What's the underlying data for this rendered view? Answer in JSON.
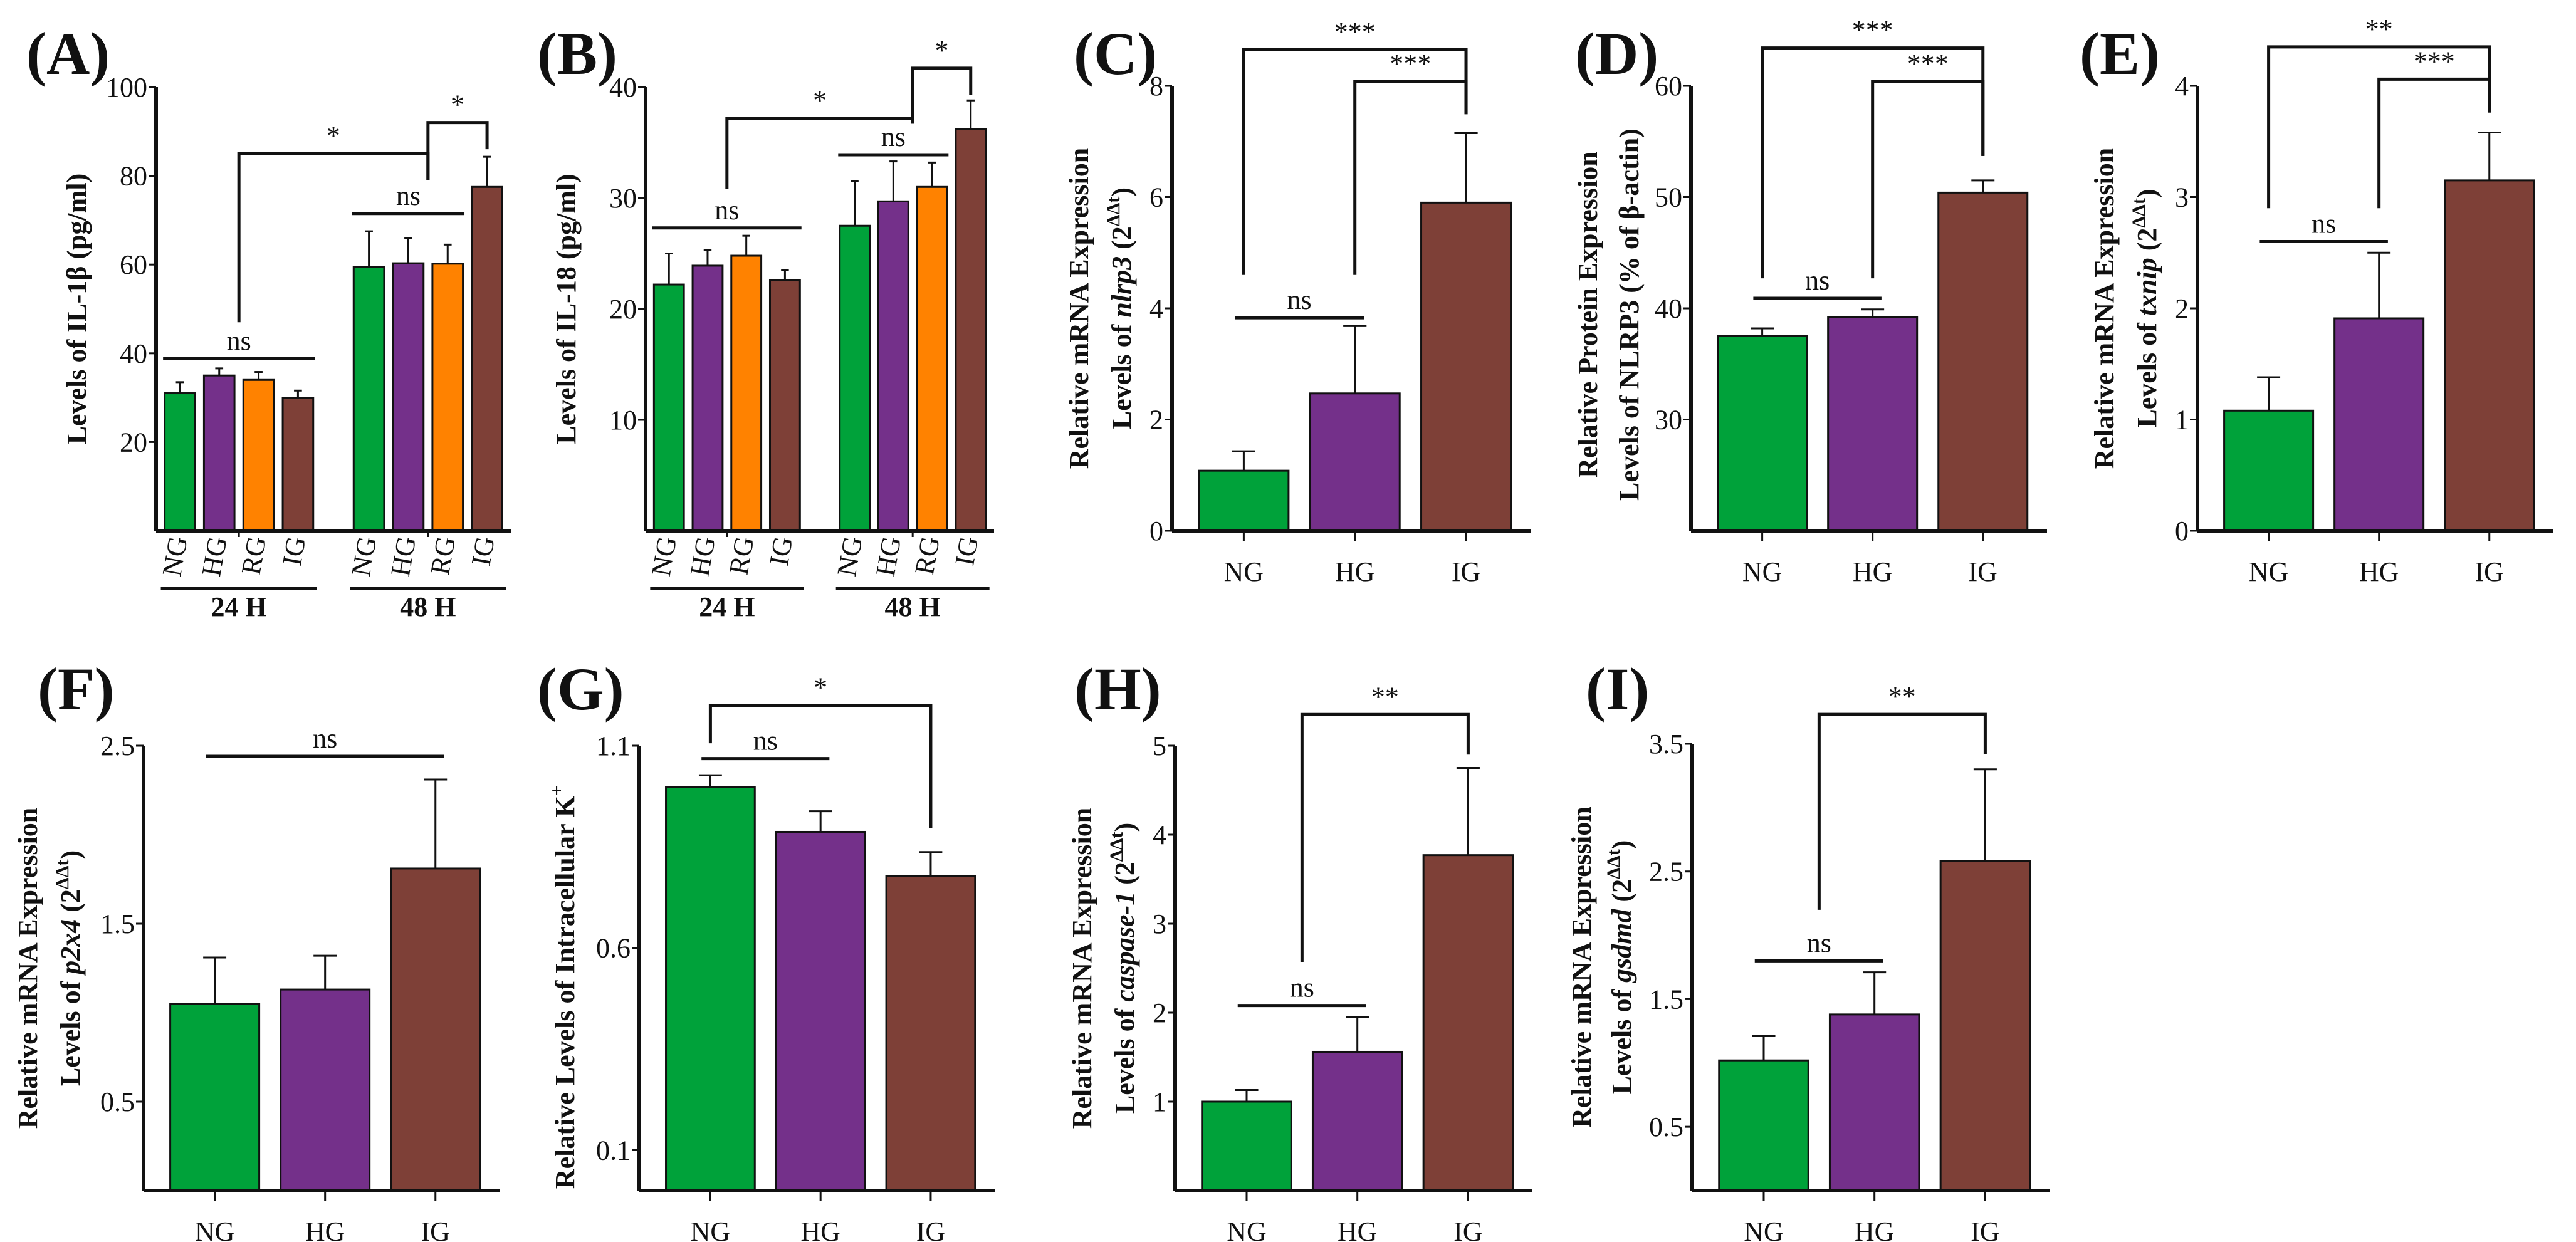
{
  "colors": {
    "NG": "#00a23a",
    "HG": "#74308a",
    "RG": "#ff8200",
    "IG": "#7e4037"
  },
  "chart_data": [
    {
      "panel": "(A)",
      "type": "bar",
      "grouped": true,
      "ylabel": [
        [
          {
            "t": "Levels of IL-1β (pg/ml)"
          }
        ]
      ],
      "ylim": [
        0,
        100
      ],
      "yticks": [
        "20",
        "40",
        "60",
        "80",
        "100"
      ],
      "ytick_values": [
        20,
        40,
        60,
        80,
        100
      ],
      "groups": [
        "24 H",
        "48 H"
      ],
      "categories": [
        "NG",
        "HG",
        "RG",
        "IG",
        "NG",
        "HG",
        "RG",
        "IG"
      ],
      "values": [
        31,
        35,
        34,
        30,
        59.5,
        60.3,
        60.2,
        77.5
      ],
      "error_top": [
        33.5,
        36.6,
        35.8,
        31.6,
        67.5,
        66,
        64.5,
        84.3
      ],
      "brackets": [
        {
          "from": 0,
          "to": 3,
          "y": 38.8,
          "label": "ns"
        },
        {
          "from": 4,
          "to": 6,
          "y": 71.5,
          "label": "ns"
        },
        {
          "from": 1.5,
          "to": 5.5,
          "y": 85,
          "leg1": 47,
          "leg2": 79,
          "label": "*"
        },
        {
          "from": 5.5,
          "to": 7,
          "y": 92,
          "leg1": 79,
          "leg2": 86,
          "label": "*"
        }
      ]
    },
    {
      "panel": "(B)",
      "type": "bar",
      "grouped": true,
      "ylabel": [
        [
          {
            "t": "Levels of IL-18 (pg/ml)"
          }
        ]
      ],
      "ylim": [
        0,
        40
      ],
      "yticks": [
        "10",
        "20",
        "30",
        "40"
      ],
      "ytick_values": [
        10,
        20,
        30,
        40
      ],
      "groups": [
        "24 H",
        "48 H"
      ],
      "categories": [
        "NG",
        "HG",
        "RG",
        "IG",
        "NG",
        "HG",
        "RG",
        "IG"
      ],
      "values": [
        22.2,
        23.9,
        24.8,
        22.6,
        27.5,
        29.7,
        31,
        36.2
      ],
      "error_top": [
        25,
        25.3,
        26.6,
        23.5,
        31.5,
        33.3,
        33.2,
        38.8
      ],
      "brackets": [
        {
          "from": 0,
          "to": 3,
          "y": 27.3,
          "label": "ns"
        },
        {
          "from": 4,
          "to": 6,
          "y": 33.9,
          "label": "ns"
        },
        {
          "from": 1.5,
          "to": 5.5,
          "y": 37.2,
          "leg1": 30.8,
          "leg2": 36.7,
          "label": "*"
        },
        {
          "from": 5.5,
          "to": 7,
          "y": 41.7,
          "leg1": 36.7,
          "leg2": 39.3,
          "label": "*"
        }
      ]
    },
    {
      "panel": "(C)",
      "type": "bar",
      "ylabel": [
        [
          {
            "t": "Relative mRNA Expression"
          }
        ],
        [
          {
            "t": "Levels of "
          },
          {
            "t": "nlrp3",
            "i": true
          },
          {
            "t": " (2"
          },
          {
            "t": "ΔΔt",
            "sup": true
          },
          {
            "t": ")"
          }
        ]
      ],
      "ylim": [
        0,
        8
      ],
      "yticks": [
        "0",
        "2",
        "4",
        "6",
        "8"
      ],
      "ytick_values": [
        0,
        2,
        4,
        6,
        8
      ],
      "categories": [
        "NG",
        "HG",
        "IG"
      ],
      "values": [
        1.08,
        2.47,
        5.9
      ],
      "error_top": [
        1.43,
        3.68,
        7.15
      ],
      "brackets": [
        {
          "from": 0,
          "to": 1,
          "y": 3.83,
          "label": "ns"
        },
        {
          "from": 0,
          "to": 2,
          "y": 8.65,
          "leg1": 4.6,
          "leg2": 7.49,
          "label": "***"
        },
        {
          "from": 1,
          "to": 2,
          "y": 8.08,
          "leg1": 4.6,
          "leg2": 7.49,
          "label": "***"
        }
      ]
    },
    {
      "panel": "(D)",
      "type": "bar",
      "ylabel": [
        [
          {
            "t": "Relative Protein Expression"
          }
        ],
        [
          {
            "t": "Levels of NLRP3 (% of β-actin)"
          }
        ]
      ],
      "ylim": [
        20,
        60
      ],
      "yticks": [
        "30",
        "40",
        "50",
        "60"
      ],
      "ytick_values": [
        30,
        40,
        50,
        60
      ],
      "categories": [
        "NG",
        "HG",
        "IG"
      ],
      "values": [
        37.5,
        39.2,
        50.4
      ],
      "error_top": [
        38.2,
        39.9,
        51.5
      ],
      "brackets": [
        {
          "from": 0,
          "to": 1,
          "y": 40.9,
          "label": "ns"
        },
        {
          "from": 0,
          "to": 2,
          "y": 63.4,
          "leg1": 42.7,
          "leg2": 53.7,
          "label": "***"
        },
        {
          "from": 1,
          "to": 2,
          "y": 60.4,
          "leg1": 42.7,
          "leg2": 53.7,
          "label": "***"
        }
      ]
    },
    {
      "panel": "(E)",
      "type": "bar",
      "ylabel": [
        [
          {
            "t": "Relative mRNA Expression"
          }
        ],
        [
          {
            "t": "Levels of "
          },
          {
            "t": "txnip",
            "i": true
          },
          {
            "t": " (2"
          },
          {
            "t": "ΔΔt",
            "sup": true
          },
          {
            "t": ")"
          }
        ]
      ],
      "ylim": [
        0,
        4
      ],
      "yticks": [
        "0",
        "1",
        "2",
        "3",
        "4"
      ],
      "ytick_values": [
        0,
        1,
        2,
        3,
        4
      ],
      "categories": [
        "NG",
        "HG",
        "IG"
      ],
      "values": [
        1.08,
        1.91,
        3.15
      ],
      "error_top": [
        1.38,
        2.5,
        3.58
      ],
      "brackets": [
        {
          "from": 0,
          "to": 1,
          "y": 2.6,
          "label": "ns"
        },
        {
          "from": 0,
          "to": 2,
          "y": 4.35,
          "leg1": 2.9,
          "leg2": 3.76,
          "label": "**"
        },
        {
          "from": 1,
          "to": 2,
          "y": 4.06,
          "leg1": 2.9,
          "leg2": 3.76,
          "label": "***"
        }
      ]
    },
    {
      "panel": "(F)",
      "type": "bar",
      "ylabel": [
        [
          {
            "t": "Relative mRNA Expression"
          }
        ],
        [
          {
            "t": "Levels of "
          },
          {
            "t": "p2x4",
            "i": true
          },
          {
            "t": " (2"
          },
          {
            "t": "ΔΔt",
            "sup": true
          },
          {
            "t": ")"
          }
        ]
      ],
      "ylim": [
        0,
        2.5
      ],
      "yticks": [
        "0.5",
        "1.5",
        "2.5"
      ],
      "ytick_values": [
        0.5,
        1.5,
        2.5
      ],
      "categories": [
        "NG",
        "HG",
        "IG"
      ],
      "values": [
        1.05,
        1.13,
        1.81
      ],
      "error_top": [
        1.31,
        1.32,
        2.31
      ],
      "brackets": [
        {
          "from": 0,
          "to": 2,
          "y": 2.44,
          "label": "ns"
        }
      ]
    },
    {
      "panel": "(G)",
      "type": "bar",
      "ylabel": [
        [
          {
            "t": "Relative Levels of Intracellular K"
          },
          {
            "t": "+",
            "sup": true
          }
        ]
      ],
      "ylim": [
        0,
        1.1
      ],
      "yticks": [
        "0.1",
        "0.6",
        "1.1"
      ],
      "ytick_values": [
        0.1,
        0.6,
        1.1
      ],
      "categories": [
        "NG",
        "HG",
        "IG"
      ],
      "values": [
        0.997,
        0.887,
        0.777
      ],
      "error_top": [
        1.027,
        0.938,
        0.837
      ],
      "brackets": [
        {
          "from": 0,
          "to": 1,
          "y": 1.068,
          "label": "ns"
        },
        {
          "from": 0,
          "to": 2,
          "y": 1.2,
          "leg1": 1.106,
          "leg2": 0.897,
          "label": "*"
        }
      ]
    },
    {
      "panel": "(H)",
      "type": "bar",
      "ylabel": [
        [
          {
            "t": "Relative mRNA Expression"
          }
        ],
        [
          {
            "t": "Levels of "
          },
          {
            "t": "caspase-1",
            "i": true
          },
          {
            "t": " (2"
          },
          {
            "t": "ΔΔt",
            "sup": true
          },
          {
            "t": ")"
          }
        ]
      ],
      "ylim": [
        0,
        5
      ],
      "yticks": [
        "1",
        "2",
        "3",
        "4",
        "5"
      ],
      "ytick_values": [
        1,
        2,
        3,
        4,
        5
      ],
      "categories": [
        "NG",
        "HG",
        "IG"
      ],
      "values": [
        1.0,
        1.56,
        3.77
      ],
      "error_top": [
        1.13,
        1.95,
        4.75
      ],
      "brackets": [
        {
          "from": 0,
          "to": 1,
          "y": 2.08,
          "label": "ns"
        },
        {
          "from": 0.5,
          "to": 2,
          "y": 5.35,
          "leg1": 2.57,
          "leg2": 4.9,
          "label": "**"
        }
      ]
    },
    {
      "panel": "(I)",
      "type": "bar",
      "ylabel": [
        [
          {
            "t": "Relative mRNA Expression"
          }
        ],
        [
          {
            "t": "Levels of "
          },
          {
            "t": "gsdmd",
            "i": true
          },
          {
            "t": " (2"
          },
          {
            "t": "ΔΔt",
            "sup": true
          },
          {
            "t": ")"
          }
        ]
      ],
      "ylim": [
        0,
        3.5
      ],
      "yticks": [
        "0.5",
        "1.5",
        "2.5",
        "3.5"
      ],
      "ytick_values": [
        0.5,
        1.5,
        2.5,
        3.5
      ],
      "categories": [
        "NG",
        "HG",
        "IG"
      ],
      "values": [
        1.02,
        1.38,
        2.58
      ],
      "error_top": [
        1.21,
        1.71,
        3.3
      ],
      "brackets": [
        {
          "from": 0,
          "to": 1,
          "y": 1.8,
          "label": "ns"
        },
        {
          "from": 0.5,
          "to": 2,
          "y": 3.73,
          "leg1": 2.2,
          "leg2": 3.42,
          "label": "**"
        }
      ]
    }
  ]
}
